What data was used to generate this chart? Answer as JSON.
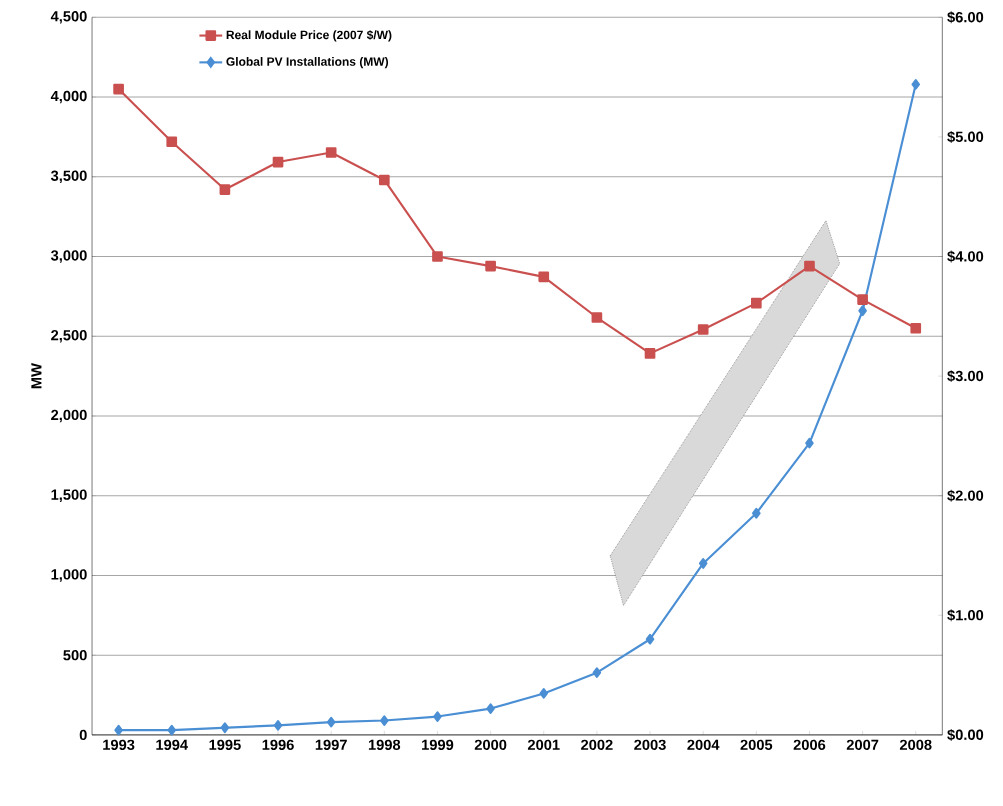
{
  "chart_data": {
    "type": "line",
    "ylabel": "MW",
    "categories": [
      "1993",
      "1994",
      "1995",
      "1996",
      "1997",
      "1998",
      "1999",
      "2000",
      "2001",
      "2002",
      "2003",
      "2004",
      "2005",
      "2006",
      "2007",
      "2008"
    ],
    "series": [
      {
        "name": "Real Module Price (2007 $/W)",
        "color": "#c9504f",
        "marker": "square",
        "axis": "y2",
        "values": [
          5.4,
          4.96,
          4.56,
          4.79,
          4.87,
          4.64,
          4.0,
          3.92,
          3.83,
          3.49,
          3.19,
          3.39,
          3.61,
          3.92,
          3.64,
          3.4
        ]
      },
      {
        "name": "Global PV Installations (MW)",
        "color": "#4a8ed4",
        "marker": "diamond",
        "values": [
          30,
          30,
          45,
          60,
          80,
          90,
          115,
          165,
          260,
          390,
          600,
          1075,
          1390,
          1830,
          2660,
          4080
        ]
      }
    ],
    "ylim": [
      0,
      4500
    ],
    "yticks": [
      {
        "value": 0,
        "label": "0"
      },
      {
        "value": 500,
        "label": "500"
      },
      {
        "value": 1000,
        "label": "1,000"
      },
      {
        "value": 1500,
        "label": "1,500"
      },
      {
        "value": 2000,
        "label": "2,000"
      },
      {
        "value": 2500,
        "label": "2,500"
      },
      {
        "value": 3000,
        "label": "3,000"
      },
      {
        "value": 3500,
        "label": "3,500"
      },
      {
        "value": 4000,
        "label": "4,000"
      },
      {
        "value": 4500,
        "label": "4,500"
      }
    ],
    "y2lim": [
      0,
      6
    ],
    "y2ticks": [
      {
        "value": 0,
        "label": "$0.00"
      },
      {
        "value": 1,
        "label": "$1.00"
      },
      {
        "value": 2,
        "label": "$2.00"
      },
      {
        "value": 3,
        "label": "$3.00"
      },
      {
        "value": 4,
        "label": "$4.00"
      },
      {
        "value": 5,
        "label": "$5.00"
      },
      {
        "value": 6,
        "label": "$6.00"
      }
    ],
    "grid": "y",
    "legend": "top left",
    "line_style": "solid"
  }
}
